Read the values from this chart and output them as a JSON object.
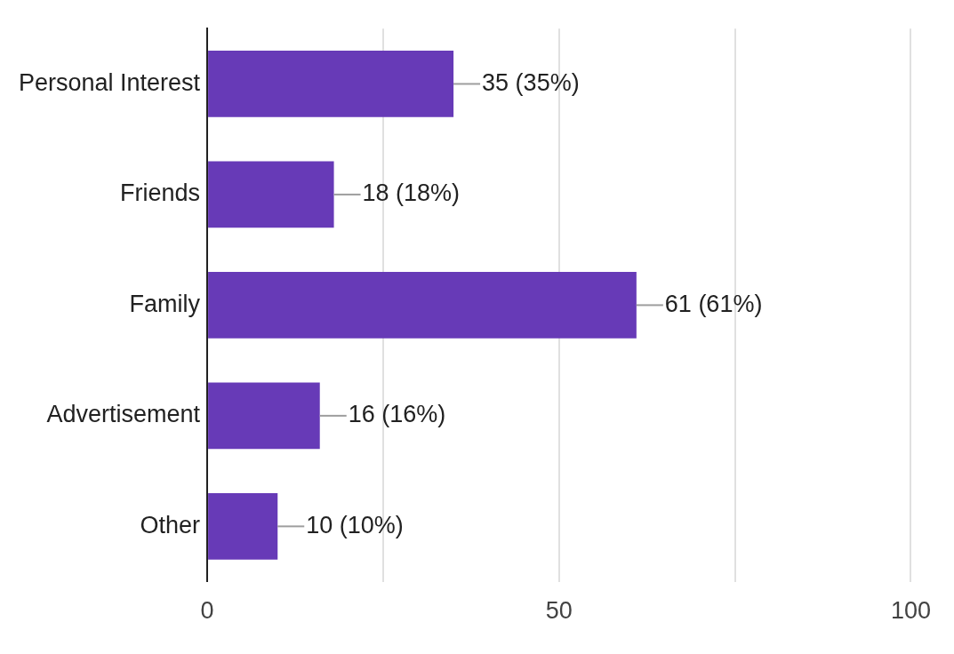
{
  "chart_data": {
    "type": "bar",
    "orientation": "horizontal",
    "categories": [
      "Personal Interest",
      "Friends",
      "Family",
      "Advertisement",
      "Other"
    ],
    "values": [
      35,
      18,
      61,
      16,
      10
    ],
    "value_labels": [
      "35 (35%)",
      "18 (18%)",
      "61 (61%)",
      "16 (16%)",
      "10 (10%)"
    ],
    "color": "#673ab7",
    "xlim": [
      0,
      100
    ],
    "xticks": [
      0,
      {
        "value": 25,
        "label": null
      },
      50,
      {
        "value": 75,
        "label": null
      },
      100
    ],
    "grid": "x"
  }
}
